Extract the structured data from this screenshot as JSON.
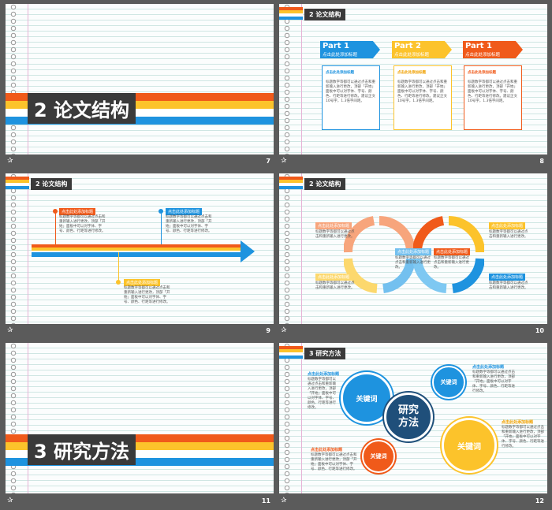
{
  "colors": {
    "orange": "#f05a1a",
    "yellow": "#fcc32b",
    "blue": "#1e93df",
    "dark": "#3a3a3a",
    "navy": "#1f4f7a"
  },
  "footer_icon": "star-icon",
  "slides": {
    "s7": {
      "title": "2 论文结构",
      "num": "7"
    },
    "s8": {
      "tag": "2 论文结构",
      "num": "8",
      "parts": [
        {
          "title": "Part 1",
          "sub": "点击此处添加标题",
          "head": "点击此处添加标题",
          "body": "标题数字等都可以通过点击和重新输入进行更改，顶部「开始」面板中可以对字体、字号、颜色、行距等进行修改。建议正文10号字，1.3倍字间距。"
        },
        {
          "title": "Part 2",
          "sub": "点击此处添加标题",
          "head": "点击此处添加标题",
          "body": "标题数字等都可以通过点击和重新输入进行更改，顶部「开始」面板中可以对字体、字号、颜色、行距等进行修改。建议正文10号字，1.3倍字间距。"
        },
        {
          "title": "Part 1",
          "sub": "点击此处添加标题",
          "head": "点击此处添加标题",
          "body": "标题数字等都可以通过点击和重新输入进行更改，顶部「开始」面板中可以对字体、字号、颜色、行距等进行修改。建议正文10号字，1.3倍字间距。"
        }
      ]
    },
    "s9": {
      "tag": "2 论文结构",
      "num": "9",
      "items": [
        {
          "label": "点击此处添加标题",
          "body": "标题数字等都可以通过点击和重新输入进行更改，顶部「开始」面板中可以对字体、字号、颜色、行距等进行修改。"
        },
        {
          "label": "点击此处添加标题",
          "body": "标题数字等都可以通过点击和重新输入进行更改，顶部「开始」面板中可以对字体、字号、颜色、行距等进行修改。"
        },
        {
          "label": "点击此处添加标题",
          "body": "标题数字等都可以通过点击和重新输入进行更改，顶部「开始」面板中可以对字体、字号、颜色、行距等进行修改。"
        }
      ]
    },
    "s10": {
      "tag": "2 论文结构",
      "num": "10",
      "items": [
        {
          "label": "点击此处添加标题",
          "body": "标题数字等都可以通过点击和重新输入进行更改。"
        },
        {
          "label": "点击此处添加标题",
          "body": "标题数字等都可以通过点击和重新输入进行更改。"
        },
        {
          "label": "点击此处添加标题",
          "body": "标题数字等都可以通过点击和重新输入进行更改。"
        },
        {
          "label": "点击此处添加标题",
          "body": "标题数字等都可以通过点击和重新输入进行更改。"
        },
        {
          "label": "点击此处添加标题",
          "body": "标题数字等都可以通过点击和重新输入进行更改。"
        },
        {
          "label": "点击此处添加标题",
          "body": "标题数字等都可以通过点击和重新输入进行更改。"
        }
      ]
    },
    "s11": {
      "title": "3 研究方法",
      "num": "11"
    },
    "s12": {
      "tag": "3 研究方法",
      "num": "12",
      "center": "研究方法",
      "kw": "关键词",
      "items": [
        {
          "label": "点击此处添加标题",
          "body": "标题数字等都可以通过点击和重新输入进行更改，顶部「开始」面板中可以对字体、字号、颜色、行距等进行修改。"
        },
        {
          "label": "点击此处添加标题",
          "body": "标题数字等都可以通过点击和重新输入进行更改，顶部「开始」面板中可以对字体、字号、颜色、行距等进行修改。"
        },
        {
          "label": "点击此处添加标题",
          "body": "标题数字等都可以通过点击和重新输入进行更改，顶部「开始」面板中可以对字体、字号、颜色、行距等进行修改。"
        },
        {
          "label": "点击此处添加标题",
          "body": "标题数字等都可以通过点击和重新输入进行更改，顶部「开始」面板中可以对字体、字号、颜色、行距等进行修改。"
        }
      ]
    }
  }
}
